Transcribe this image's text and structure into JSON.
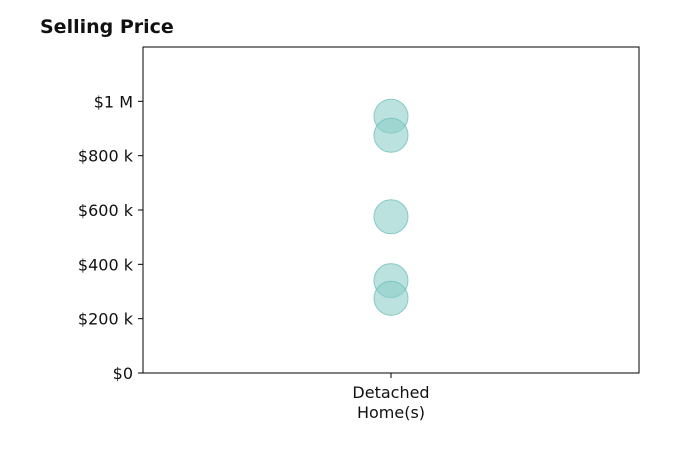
{
  "chart_data": {
    "type": "scatter",
    "title": "Selling Price",
    "xlabel": "",
    "ylabel": "",
    "categories": [
      "Detached\nHome(s)"
    ],
    "series": [
      {
        "category": "Detached\nHome(s)",
        "values": [
          945000,
          875000,
          575000,
          340000,
          275000
        ]
      }
    ],
    "ylim": [
      0,
      1200000
    ],
    "yticks": [
      0,
      200000,
      400000,
      600000,
      800000,
      1000000
    ],
    "ytick_labels": [
      "$0",
      "$200 k",
      "$400 k",
      "$600 k",
      "$800 k",
      "$1 M"
    ],
    "grid": false,
    "legend": "none",
    "colors": {
      "marker_fill": "#8ecfca",
      "marker_stroke": "#6fc0b9",
      "axis": "#000000"
    }
  }
}
